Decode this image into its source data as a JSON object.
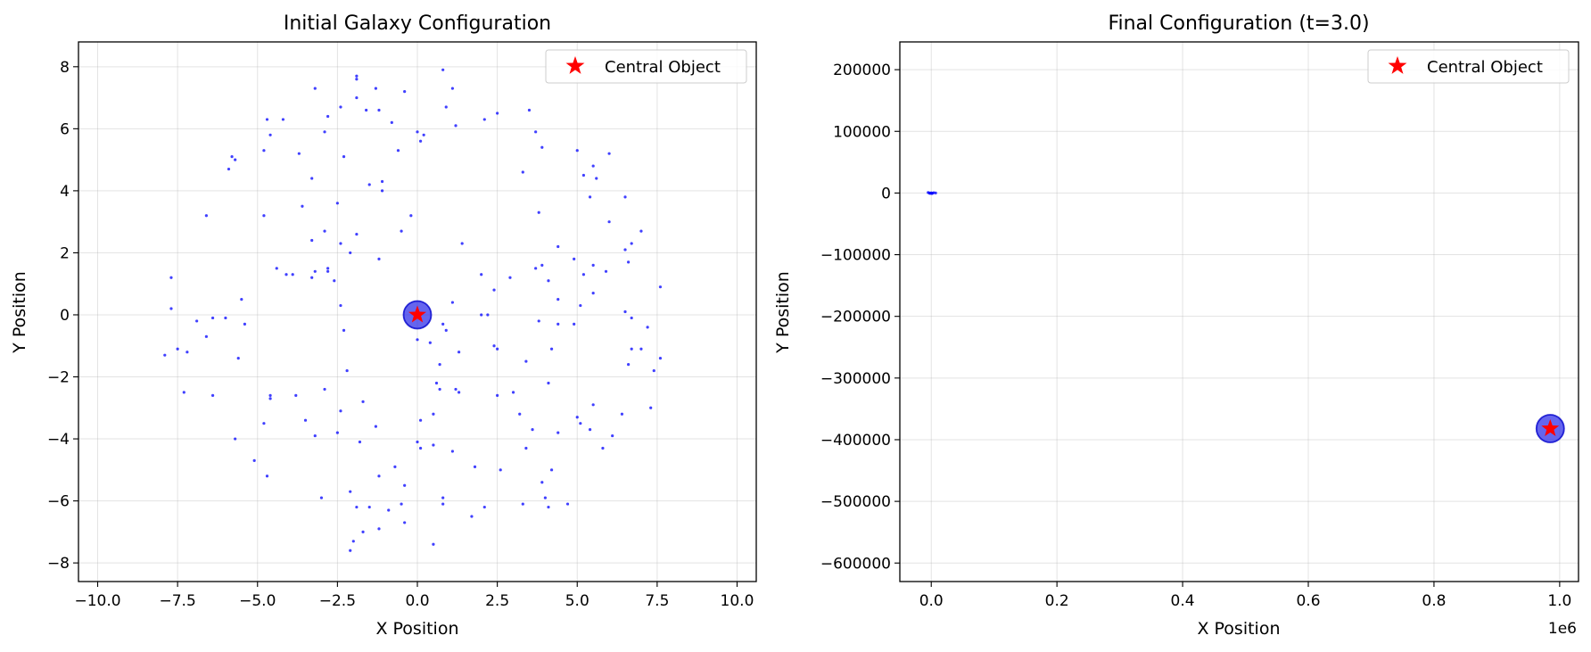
{
  "chart_data": [
    {
      "type": "scatter",
      "title": "Initial Galaxy Configuration",
      "xlabel": "X Position",
      "ylabel": "Y Position",
      "xlim": [
        -10.6,
        10.6
      ],
      "ylim": [
        -8.6,
        8.8
      ],
      "xticks": [
        -10.0,
        -7.5,
        -5.0,
        -2.5,
        0.0,
        2.5,
        5.0,
        7.5,
        10.0
      ],
      "xtick_labels": [
        "−10.0",
        "−7.5",
        "−5.0",
        "−2.5",
        "0.0",
        "2.5",
        "5.0",
        "7.5",
        "10.0"
      ],
      "yticks": [
        -8,
        -6,
        -4,
        -2,
        0,
        2,
        4,
        6,
        8
      ],
      "ytick_labels": [
        "−8",
        "−6",
        "−4",
        "−2",
        "0",
        "2",
        "4",
        "6",
        "8"
      ],
      "grid": true,
      "legend": {
        "position": "top-right",
        "entries": [
          "Central Object"
        ]
      },
      "colors": {
        "particles": "#0000ff",
        "central_marker": "#ff0000",
        "central_disc": "#2a2ae8"
      },
      "central_object": {
        "x": 0.0,
        "y": 0.0
      },
      "series": [
        {
          "marker": "dot",
          "points": [
            [
              -1.9,
              7.7
            ],
            [
              -1.9,
              7.6
            ],
            [
              0.8,
              7.9
            ],
            [
              -3.2,
              7.3
            ],
            [
              -1.3,
              7.3
            ],
            [
              -0.4,
              7.2
            ],
            [
              1.1,
              7.3
            ],
            [
              -1.9,
              7.0
            ],
            [
              0.9,
              6.7
            ],
            [
              -2.4,
              6.7
            ],
            [
              -1.6,
              6.6
            ],
            [
              -1.2,
              6.6
            ],
            [
              -4.7,
              6.3
            ],
            [
              -4.2,
              6.3
            ],
            [
              -2.8,
              6.4
            ],
            [
              2.5,
              6.5
            ],
            [
              3.5,
              6.6
            ],
            [
              -0.8,
              6.2
            ],
            [
              2.1,
              6.3
            ],
            [
              1.2,
              6.1
            ],
            [
              -4.6,
              5.8
            ],
            [
              -2.9,
              5.9
            ],
            [
              0.0,
              5.9
            ],
            [
              0.2,
              5.8
            ],
            [
              0.1,
              5.6
            ],
            [
              3.7,
              5.9
            ],
            [
              -4.8,
              5.3
            ],
            [
              -3.7,
              5.2
            ],
            [
              -2.3,
              5.1
            ],
            [
              -0.6,
              5.3
            ],
            [
              3.9,
              5.4
            ],
            [
              5.0,
              5.3
            ],
            [
              6.0,
              5.2
            ],
            [
              -5.8,
              5.1
            ],
            [
              -5.7,
              5.0
            ],
            [
              -5.9,
              4.7
            ],
            [
              5.5,
              4.8
            ],
            [
              -3.3,
              4.4
            ],
            [
              -1.5,
              4.2
            ],
            [
              -1.1,
              4.3
            ],
            [
              -1.1,
              4.0
            ],
            [
              3.3,
              4.6
            ],
            [
              5.2,
              4.5
            ],
            [
              5.6,
              4.4
            ],
            [
              5.4,
              3.8
            ],
            [
              6.5,
              3.8
            ],
            [
              -3.6,
              3.5
            ],
            [
              -2.5,
              3.6
            ],
            [
              -0.2,
              3.2
            ],
            [
              -4.8,
              3.2
            ],
            [
              -6.6,
              3.2
            ],
            [
              3.8,
              3.3
            ],
            [
              6.0,
              3.0
            ],
            [
              7.0,
              2.7
            ],
            [
              -2.9,
              2.7
            ],
            [
              -0.5,
              2.7
            ],
            [
              -1.9,
              2.6
            ],
            [
              1.4,
              2.3
            ],
            [
              4.4,
              2.2
            ],
            [
              6.5,
              2.1
            ],
            [
              6.7,
              2.3
            ],
            [
              -3.3,
              2.4
            ],
            [
              -2.4,
              2.3
            ],
            [
              -2.1,
              2.0
            ],
            [
              -1.2,
              1.8
            ],
            [
              4.9,
              1.8
            ],
            [
              6.6,
              1.7
            ],
            [
              -4.4,
              1.5
            ],
            [
              -3.9,
              1.3
            ],
            [
              -4.1,
              1.3
            ],
            [
              -3.2,
              1.4
            ],
            [
              -2.8,
              1.4
            ],
            [
              -2.8,
              1.5
            ],
            [
              -3.3,
              1.2
            ],
            [
              -2.6,
              1.1
            ],
            [
              2.0,
              1.3
            ],
            [
              2.9,
              1.2
            ],
            [
              3.7,
              1.5
            ],
            [
              3.9,
              1.6
            ],
            [
              4.1,
              1.1
            ],
            [
              5.2,
              1.3
            ],
            [
              5.5,
              1.6
            ],
            [
              5.9,
              1.4
            ],
            [
              -7.7,
              1.2
            ],
            [
              7.6,
              0.9
            ],
            [
              2.4,
              0.8
            ],
            [
              5.5,
              0.7
            ],
            [
              4.4,
              0.5
            ],
            [
              -5.5,
              0.5
            ],
            [
              -2.4,
              0.3
            ],
            [
              1.1,
              0.4
            ],
            [
              5.1,
              0.3
            ],
            [
              6.5,
              0.1
            ],
            [
              -7.7,
              0.2
            ],
            [
              2.0,
              0.0
            ],
            [
              2.2,
              0.0
            ],
            [
              3.8,
              -0.2
            ],
            [
              -6.9,
              -0.2
            ],
            [
              -6.4,
              -0.1
            ],
            [
              -6.0,
              -0.1
            ],
            [
              6.7,
              -0.1
            ],
            [
              0.8,
              -0.3
            ],
            [
              0.9,
              -0.5
            ],
            [
              4.4,
              -0.3
            ],
            [
              4.9,
              -0.3
            ],
            [
              -5.4,
              -0.3
            ],
            [
              7.2,
              -0.4
            ],
            [
              -2.3,
              -0.5
            ],
            [
              -6.6,
              -0.7
            ],
            [
              0.0,
              -0.8
            ],
            [
              0.4,
              -0.9
            ],
            [
              2.4,
              -1.0
            ],
            [
              2.5,
              -1.1
            ],
            [
              1.3,
              -1.2
            ],
            [
              4.2,
              -1.1
            ],
            [
              6.7,
              -1.1
            ],
            [
              7.0,
              -1.1
            ],
            [
              -7.5,
              -1.1
            ],
            [
              -7.2,
              -1.2
            ],
            [
              -7.9,
              -1.3
            ],
            [
              -5.6,
              -1.4
            ],
            [
              3.4,
              -1.5
            ],
            [
              7.6,
              -1.4
            ],
            [
              0.7,
              -1.6
            ],
            [
              6.6,
              -1.6
            ],
            [
              -2.2,
              -1.8
            ],
            [
              7.4,
              -1.8
            ],
            [
              0.6,
              -2.2
            ],
            [
              4.1,
              -2.2
            ],
            [
              0.7,
              -2.4
            ],
            [
              1.2,
              -2.4
            ],
            [
              1.3,
              -2.5
            ],
            [
              3.0,
              -2.5
            ],
            [
              -2.9,
              -2.4
            ],
            [
              -7.3,
              -2.5
            ],
            [
              -6.4,
              -2.6
            ],
            [
              -4.6,
              -2.6
            ],
            [
              -4.6,
              -2.7
            ],
            [
              -3.8,
              -2.6
            ],
            [
              2.5,
              -2.6
            ],
            [
              -1.7,
              -2.8
            ],
            [
              5.5,
              -2.9
            ],
            [
              7.3,
              -3.0
            ],
            [
              -2.4,
              -3.1
            ],
            [
              0.5,
              -3.2
            ],
            [
              3.2,
              -3.2
            ],
            [
              5.0,
              -3.3
            ],
            [
              6.4,
              -3.2
            ],
            [
              0.1,
              -3.4
            ],
            [
              -4.8,
              -3.5
            ],
            [
              -3.5,
              -3.4
            ],
            [
              -1.3,
              -3.6
            ],
            [
              3.6,
              -3.7
            ],
            [
              5.1,
              -3.5
            ],
            [
              5.4,
              -3.7
            ],
            [
              -3.2,
              -3.9
            ],
            [
              -2.5,
              -3.8
            ],
            [
              -1.8,
              -4.1
            ],
            [
              4.4,
              -3.8
            ],
            [
              6.1,
              -3.9
            ],
            [
              -5.7,
              -4.0
            ],
            [
              0.0,
              -4.1
            ],
            [
              0.1,
              -4.3
            ],
            [
              0.5,
              -4.2
            ],
            [
              3.4,
              -4.3
            ],
            [
              5.8,
              -4.3
            ],
            [
              1.1,
              -4.4
            ],
            [
              -5.1,
              -4.7
            ],
            [
              -0.7,
              -4.9
            ],
            [
              -4.7,
              -5.2
            ],
            [
              -1.2,
              -5.2
            ],
            [
              1.8,
              -4.9
            ],
            [
              2.6,
              -5.0
            ],
            [
              4.2,
              -5.0
            ],
            [
              -0.4,
              -5.5
            ],
            [
              3.9,
              -5.4
            ],
            [
              -2.1,
              -5.7
            ],
            [
              0.8,
              -5.9
            ],
            [
              -3.0,
              -5.9
            ],
            [
              0.8,
              -6.1
            ],
            [
              3.3,
              -6.1
            ],
            [
              4.0,
              -5.9
            ],
            [
              4.1,
              -6.2
            ],
            [
              4.7,
              -6.1
            ],
            [
              -1.9,
              -6.2
            ],
            [
              -1.5,
              -6.2
            ],
            [
              -0.9,
              -6.3
            ],
            [
              -0.5,
              -6.1
            ],
            [
              2.1,
              -6.2
            ],
            [
              -1.2,
              -6.9
            ],
            [
              1.7,
              -6.5
            ],
            [
              -0.4,
              -6.7
            ],
            [
              -1.7,
              -7.0
            ],
            [
              -2.0,
              -7.3
            ],
            [
              0.5,
              -7.4
            ],
            [
              -2.1,
              -7.6
            ]
          ]
        }
      ]
    },
    {
      "type": "scatter",
      "title": "Final Configuration (t=3.0)",
      "xlabel": "X Position",
      "ylabel": "Y Position",
      "x_offset_label": "1e6",
      "xlim": [
        -0.05,
        1.03
      ],
      "x_scale_note": "x values in units of 1e6",
      "ylim": [
        -630000,
        245000
      ],
      "xticks": [
        0.0,
        0.2,
        0.4,
        0.6,
        0.8,
        1.0
      ],
      "xtick_labels": [
        "0.0",
        "0.2",
        "0.4",
        "0.6",
        "0.8",
        "1.0"
      ],
      "yticks": [
        200000,
        100000,
        0,
        -100000,
        -200000,
        -300000,
        -400000,
        -500000,
        -600000
      ],
      "ytick_labels": [
        "200000",
        "100000",
        "0",
        "−100000",
        "−200000",
        "−300000",
        "−400000",
        "−500000",
        "−600000"
      ],
      "grid": true,
      "legend": {
        "position": "top-right",
        "entries": [
          "Central Object"
        ]
      },
      "colors": {
        "particles": "#0000ff",
        "central_marker": "#ff0000",
        "central_disc": "#2a2ae8"
      },
      "central_object": {
        "x": 0.985,
        "y": -382000
      },
      "series": [
        {
          "marker": "dot",
          "points": [
            [
              -0.005,
              800
            ],
            [
              -0.002,
              -600
            ],
            [
              0.0,
              300
            ],
            [
              0.002,
              -200
            ],
            [
              0.004,
              500
            ],
            [
              0.007,
              0
            ],
            [
              -0.003,
              0
            ],
            [
              0.001,
              -900
            ]
          ]
        }
      ]
    }
  ]
}
